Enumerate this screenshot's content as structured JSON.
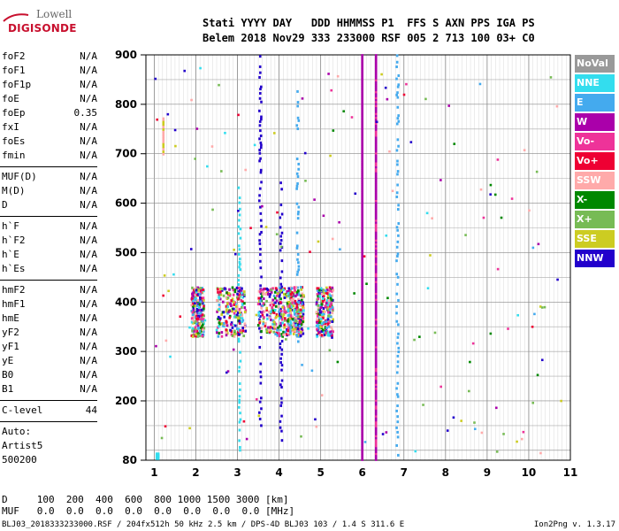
{
  "logo": {
    "line1": "Lowell",
    "line2": "DIGISONDE"
  },
  "header": {
    "row1": "Stati YYYY DAY   DDD HHMMSS P1  FFS S AXN PPS IGA PS",
    "row2": "Belem 2018 Nov29 333 233000 RSF 005 2 713 100 03+ C0"
  },
  "params": [
    {
      "k": "foF2",
      "v": "N/A"
    },
    {
      "k": "foF1",
      "v": "N/A"
    },
    {
      "k": "foF1p",
      "v": "N/A"
    },
    {
      "k": "foE",
      "v": "N/A"
    },
    {
      "k": "foEp",
      "v": "0.35"
    },
    {
      "k": "fxI",
      "v": "N/A"
    },
    {
      "k": "foEs",
      "v": "N/A"
    },
    {
      "k": "fmin",
      "v": "N/A"
    },
    {
      "k": "MUF(D)",
      "v": "N/A"
    },
    {
      "k": "M(D)",
      "v": "N/A"
    },
    {
      "k": "D",
      "v": "N/A"
    },
    {
      "k": "h`F",
      "v": "N/A"
    },
    {
      "k": "h`F2",
      "v": "N/A"
    },
    {
      "k": "h`E",
      "v": "N/A"
    },
    {
      "k": "h`Es",
      "v": "N/A"
    },
    {
      "k": "hmF2",
      "v": "N/A"
    },
    {
      "k": "hmF1",
      "v": "N/A"
    },
    {
      "k": "hmE",
      "v": "N/A"
    },
    {
      "k": "yF2",
      "v": "N/A"
    },
    {
      "k": "yF1",
      "v": "N/A"
    },
    {
      "k": "yE",
      "v": "N/A"
    },
    {
      "k": "B0",
      "v": "N/A"
    },
    {
      "k": "B1",
      "v": "N/A"
    },
    {
      "k": "C-level",
      "v": "44"
    }
  ],
  "auto": {
    "line1": "Auto:",
    "line2": "Artist5",
    "line3": "500200"
  },
  "legend": [
    {
      "label": "NoVal",
      "color": "#999999"
    },
    {
      "label": "NNE",
      "color": "#33ddee"
    },
    {
      "label": "E",
      "color": "#44aaee"
    },
    {
      "label": "W",
      "color": "#aa00aa"
    },
    {
      "label": "Vo-",
      "color": "#ee3399"
    },
    {
      "label": "Vo+",
      "color": "#ee0033"
    },
    {
      "label": "SSW",
      "color": "#ffaaaa"
    },
    {
      "label": "X-",
      "color": "#008800"
    },
    {
      "label": "X+",
      "color": "#77bb55"
    },
    {
      "label": "SSE",
      "color": "#cccc22"
    },
    {
      "label": "NNW",
      "color": "#2200cc"
    }
  ],
  "bottom": {
    "drow": "D     100  200  400  600  800 1000 1500 3000 [km]",
    "mrow": "MUF   0.0  0.0  0.0  0.0  0.0  0.0  0.0  0.0 [MHz]"
  },
  "footer": {
    "left": "BLJ03_2018333233000.RSF / 204fx512h 50 kHz 2.5 km / DPS-4D BLJ03 103 / 1.4 S 311.6 E",
    "right": "Ion2Png v. 1.3.17"
  },
  "chart_data": {
    "type": "scatter",
    "title": "",
    "xlabel": "",
    "ylabel": "",
    "xlim": [
      0.8,
      11.0
    ],
    "ylim": [
      80,
      900
    ],
    "xticks": [
      1,
      2,
      3,
      4,
      5,
      6,
      7,
      8,
      9,
      10,
      11
    ],
    "yticks": [
      80,
      200,
      300,
      400,
      500,
      600,
      700,
      800,
      900
    ],
    "grid": true,
    "xtick_labels": [
      "1",
      "2",
      "3",
      "4",
      "5",
      "6",
      "7",
      "8",
      "9",
      "10",
      "11"
    ],
    "ytick_labels": [
      "80",
      "200",
      "300",
      "400",
      "500",
      "600",
      "700",
      "800",
      "900"
    ]
  }
}
